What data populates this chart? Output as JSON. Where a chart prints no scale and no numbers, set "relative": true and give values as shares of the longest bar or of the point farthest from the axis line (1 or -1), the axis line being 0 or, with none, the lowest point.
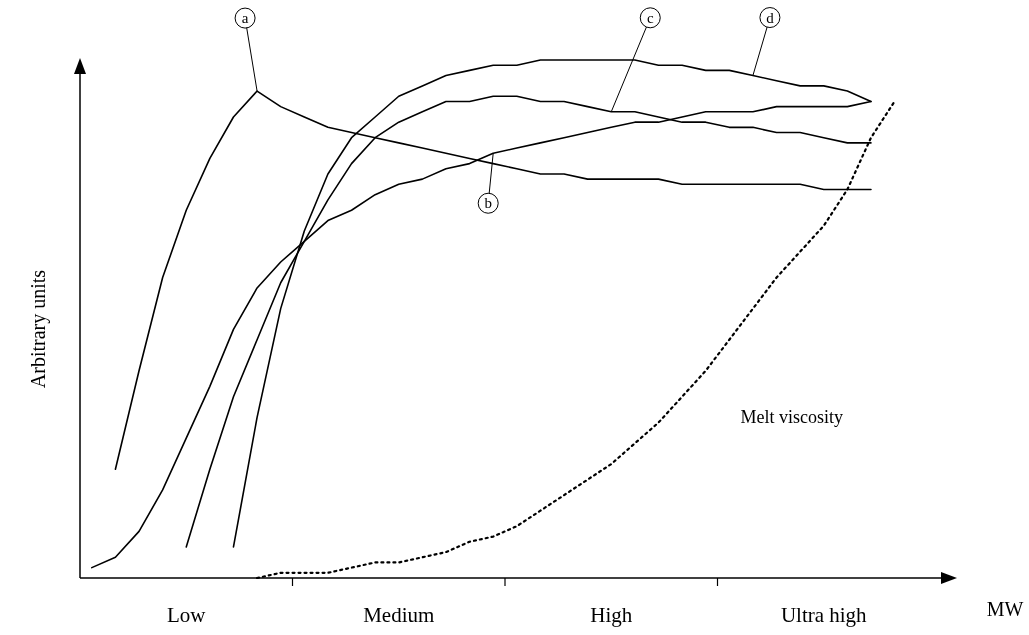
{
  "chart_data": {
    "type": "line",
    "relative": true,
    "xlabel": "MW",
    "ylabel": "Arbitrary units",
    "categories": [
      null,
      null,
      null,
      null,
      "Low",
      null,
      null,
      null,
      null,
      null,
      null,
      null,
      null,
      "Medium",
      null,
      null,
      null,
      null,
      null,
      null,
      null,
      null,
      "High",
      null,
      null,
      null,
      null,
      null,
      null,
      null,
      null,
      "Ultra high",
      null,
      null,
      null,
      null
    ],
    "marker": "none",
    "series": [
      {
        "name": "a",
        "color": "#000000",
        "line_style": "solid",
        "values": [
          null,
          0.21,
          0.4,
          0.58,
          0.71,
          0.81,
          0.89,
          0.94,
          0.91,
          0.89,
          0.87,
          0.86,
          0.85,
          0.84,
          0.83,
          0.82,
          0.81,
          0.8,
          0.79,
          0.78,
          0.78,
          0.77,
          0.77,
          0.77,
          0.77,
          0.76,
          0.76,
          0.76,
          0.76,
          0.76,
          0.76,
          0.75,
          0.75,
          0.75,
          null,
          null
        ]
      },
      {
        "name": "b",
        "color": "#000000",
        "line_style": "solid",
        "values": [
          0.02,
          0.04,
          0.09,
          0.17,
          0.27,
          0.37,
          0.48,
          0.56,
          0.61,
          0.65,
          0.69,
          0.71,
          0.74,
          0.76,
          0.77,
          0.79,
          0.8,
          0.82,
          0.83,
          0.84,
          0.85,
          0.86,
          0.87,
          0.88,
          0.88,
          0.89,
          0.9,
          0.9,
          0.9,
          0.91,
          0.91,
          0.91,
          0.91,
          0.92,
          null,
          null
        ]
      },
      {
        "name": "c",
        "color": "#000000",
        "line_style": "solid",
        "values": [
          null,
          null,
          null,
          null,
          0.06,
          0.21,
          0.35,
          0.46,
          0.57,
          0.65,
          0.73,
          0.8,
          0.85,
          0.88,
          0.9,
          0.92,
          0.92,
          0.93,
          0.93,
          0.92,
          0.92,
          0.91,
          0.9,
          0.9,
          0.89,
          0.88,
          0.88,
          0.87,
          0.87,
          0.86,
          0.86,
          0.85,
          0.84,
          0.84,
          null,
          null
        ]
      },
      {
        "name": "d",
        "color": "#000000",
        "line_style": "solid",
        "values": [
          null,
          null,
          null,
          null,
          null,
          null,
          0.06,
          0.31,
          0.52,
          0.67,
          0.78,
          0.85,
          0.89,
          0.93,
          0.95,
          0.97,
          0.98,
          0.99,
          0.99,
          1,
          1,
          1,
          1,
          1,
          0.99,
          0.99,
          0.98,
          0.98,
          0.97,
          0.96,
          0.95,
          0.95,
          0.94,
          0.92,
          null,
          null
        ]
      },
      {
        "name": "Melt viscosity",
        "color": "#000000",
        "line_style": "dotted",
        "values": [
          null,
          null,
          null,
          null,
          null,
          null,
          null,
          0,
          0.01,
          0.01,
          0.01,
          0.02,
          0.03,
          0.03,
          0.04,
          0.05,
          0.07,
          0.08,
          0.1,
          0.13,
          0.16,
          0.19,
          0.22,
          0.26,
          0.3,
          0.35,
          0.4,
          0.46,
          0.52,
          0.58,
          0.63,
          0.68,
          0.75,
          0.85,
          0.92,
          null
        ]
      }
    ]
  }
}
